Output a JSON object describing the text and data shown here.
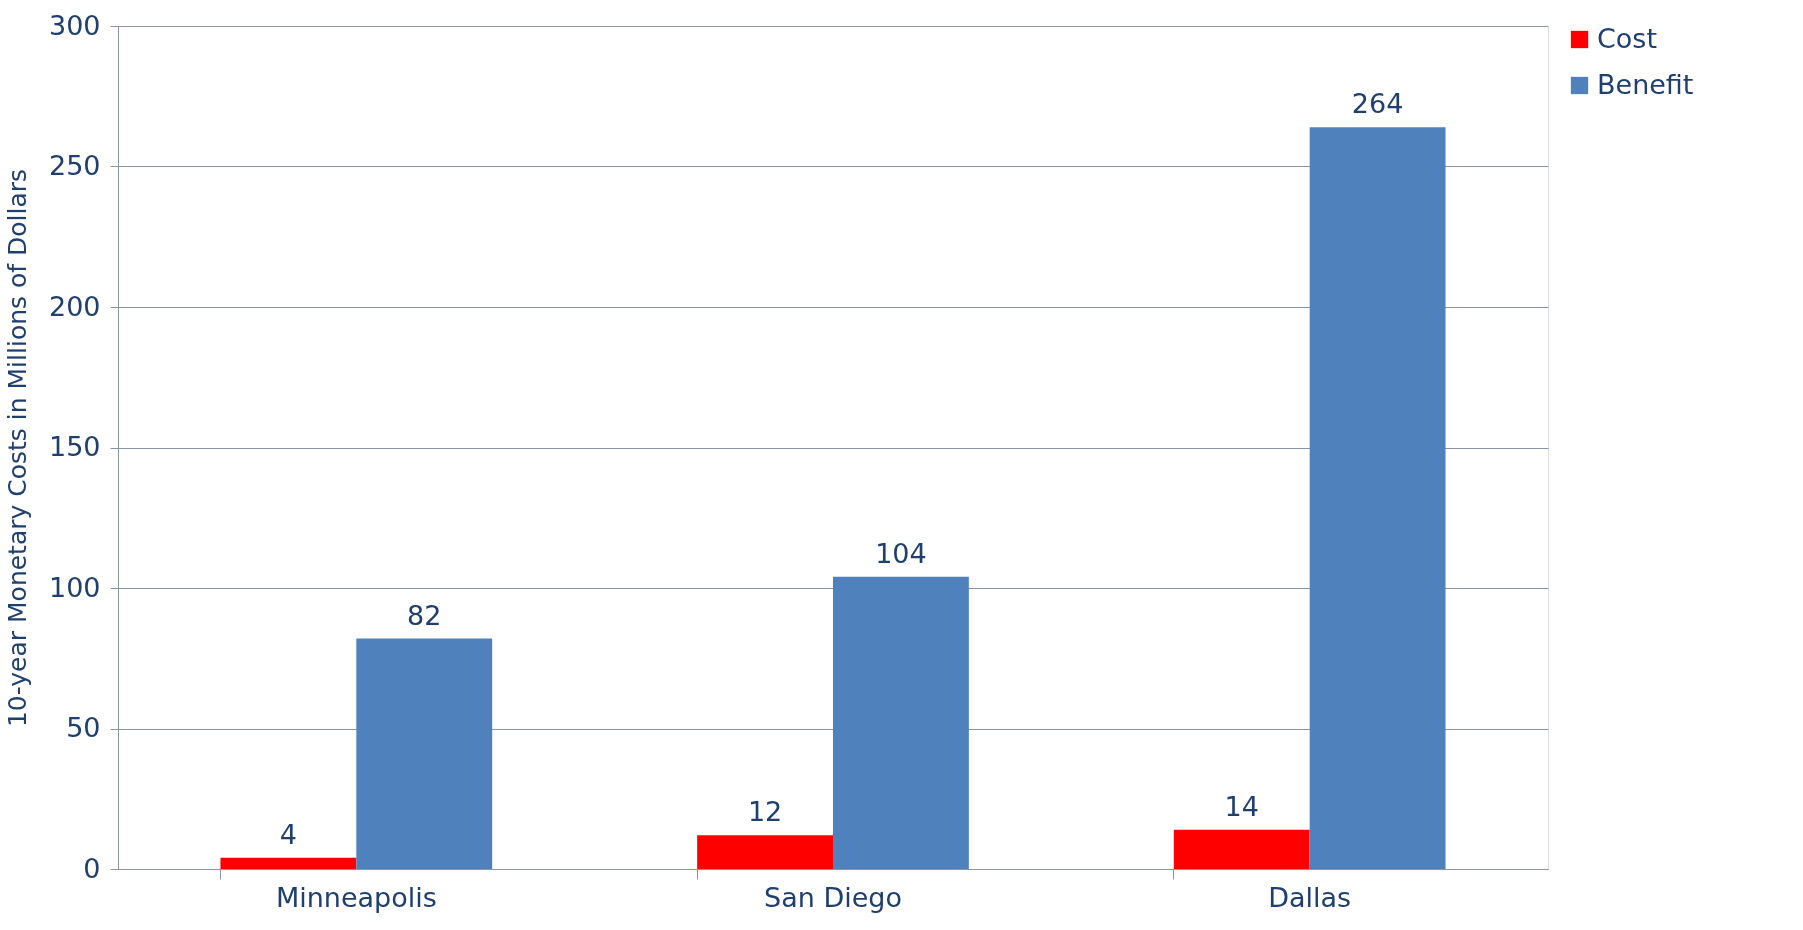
{
  "chart_data": {
    "type": "bar",
    "ylabel": "10-year Monetary Costs in Millions of Dollars",
    "categories": [
      "Minneapolis",
      "San Diego",
      "Dallas"
    ],
    "series": [
      {
        "name": "Cost",
        "color": "#ff0000",
        "values": [
          4,
          12,
          14
        ]
      },
      {
        "name": "Benefit",
        "color": "#4f81bd",
        "values": [
          82,
          104,
          264
        ]
      }
    ],
    "ylim": [
      0,
      300
    ],
    "yticks": [
      0,
      50,
      100,
      150,
      200,
      250,
      300
    ],
    "grid": "y",
    "legend": "right",
    "data_labels": true
  }
}
